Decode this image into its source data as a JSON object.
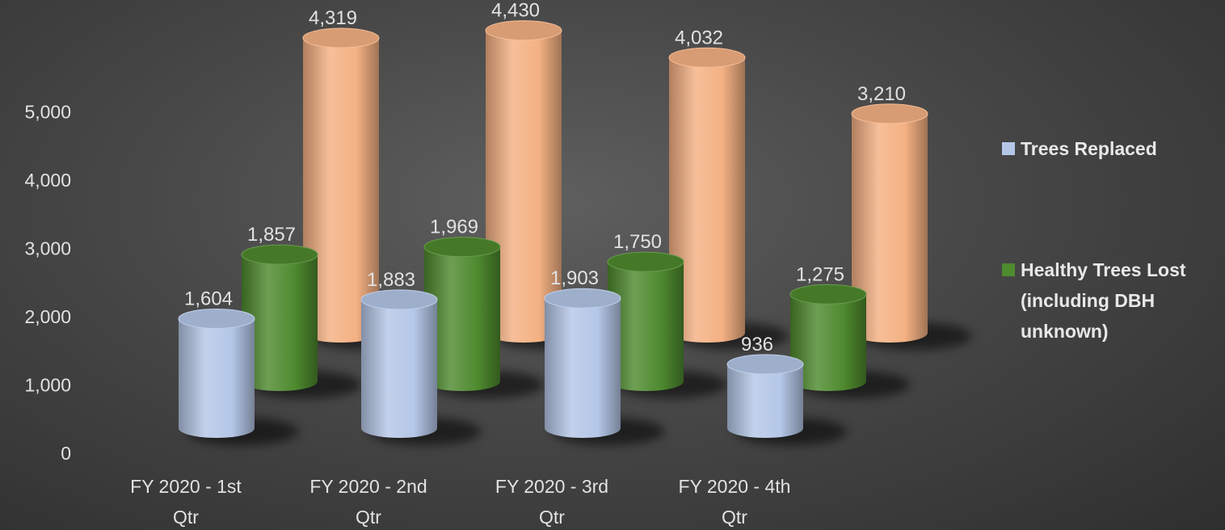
{
  "chart_data": {
    "type": "bar",
    "style": "3d-cylinder",
    "categories": [
      "FY 2020 - 1st Qtr",
      "FY 2020 - 2nd Qtr",
      "FY 2020 - 3rd Qtr",
      "FY 2020 - 4th Qtr"
    ],
    "category_lines": [
      [
        "FY 2020 - 1st",
        "Qtr"
      ],
      [
        "FY 2020 - 2nd",
        "Qtr"
      ],
      [
        "FY 2020 - 3rd",
        "Qtr"
      ],
      [
        "FY 2020 - 4th",
        "Qtr"
      ]
    ],
    "series": [
      {
        "name": "Trees Replaced",
        "values": [
          1604,
          1883,
          1903,
          936
        ],
        "labels": [
          "1,604",
          "1,883",
          "1,903",
          "936"
        ],
        "color": "#b4c7e7"
      },
      {
        "name": "Healthy Trees Lost (including DBH unknown)",
        "values": [
          1857,
          1969,
          1750,
          1275
        ],
        "labels": [
          "1,857",
          "1,969",
          "1,750",
          "1,275"
        ],
        "color": "#4e8a2e"
      },
      {
        "name": "",
        "values": [
          4319,
          4430,
          4032,
          3210
        ],
        "labels": [
          "4,319",
          "4,430",
          "4,032",
          "3,210"
        ],
        "color": "#f4b183"
      }
    ],
    "legend_lines": [
      [
        "Trees Replaced"
      ],
      [
        "Healthy Trees Lost",
        "(including DBH",
        "unknown)"
      ]
    ],
    "yticks": [
      0,
      1000,
      2000,
      3000,
      4000,
      5000
    ],
    "ytick_labels": [
      "0",
      "1,000",
      "2,000",
      "3,000",
      "4,000",
      "5,000"
    ],
    "ylim": [
      0,
      5000
    ],
    "title": "",
    "xlabel": "",
    "ylabel": "",
    "grid": false,
    "legend": "right"
  }
}
